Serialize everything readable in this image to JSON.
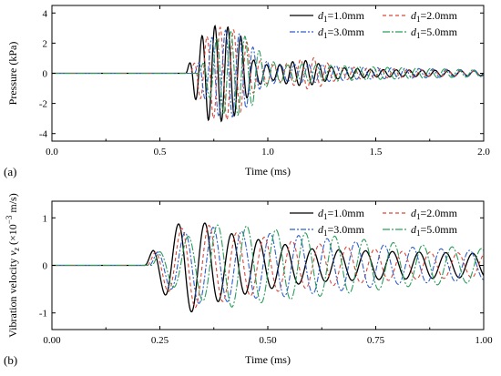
{
  "chart_data": [
    {
      "type": "line",
      "panel_label": "(a)",
      "xlabel": "Time (ms)",
      "ylabel": "Pressure (kPa)",
      "xlim": [
        0.0,
        2.0
      ],
      "ylim": [
        -4.5,
        4.5
      ],
      "xticks": [
        0.0,
        0.5,
        1.0,
        1.5,
        2.0
      ],
      "xtick_labels": [
        "0.0",
        "0.5",
        "1.0",
        "1.5",
        "2.0"
      ],
      "yticks": [
        -4,
        -2,
        0,
        2,
        4
      ],
      "ytick_labels": [
        "-4",
        "-2",
        "0",
        "2",
        "4"
      ],
      "legend_position": "top-right",
      "legend": [
        {
          "subscript": "1",
          "value": "=1.0mm"
        },
        {
          "subscript": "1",
          "value": "=2.0mm"
        },
        {
          "subscript": "1",
          "value": "=3.0mm"
        },
        {
          "subscript": "1",
          "value": "=5.0mm"
        }
      ],
      "series": [
        {
          "name": "d1=1.0mm",
          "color": "#000000",
          "dash": "",
          "onset": 0.62,
          "envelope": [
            [
              0.62,
              0
            ],
            [
              0.66,
              1.6
            ],
            [
              0.72,
              3.1
            ],
            [
              0.8,
              3.2
            ],
            [
              0.87,
              2.6
            ],
            [
              0.93,
              0.9
            ],
            [
              1.02,
              0.45
            ],
            [
              1.1,
              0.75
            ],
            [
              1.18,
              0.85
            ],
            [
              1.3,
              0.4
            ],
            [
              1.5,
              0.25
            ],
            [
              2.0,
              0.15
            ]
          ],
          "period": 0.06
        },
        {
          "name": "d1=2.0mm",
          "color": "#d9473a",
          "dash": "4,3",
          "onset": 0.64,
          "envelope": [
            [
              0.64,
              0
            ],
            [
              0.68,
              1.5
            ],
            [
              0.74,
              3.0
            ],
            [
              0.82,
              3.1
            ],
            [
              0.89,
              2.4
            ],
            [
              0.95,
              0.9
            ],
            [
              1.04,
              0.5
            ],
            [
              1.12,
              0.8
            ],
            [
              1.2,
              1.1
            ],
            [
              1.32,
              0.45
            ],
            [
              1.55,
              0.3
            ],
            [
              2.0,
              0.18
            ]
          ],
          "period": 0.062
        },
        {
          "name": "d1=3.0mm",
          "color": "#2f5fc9",
          "dash": "6,2,2,2",
          "onset": 0.66,
          "envelope": [
            [
              0.66,
              0
            ],
            [
              0.7,
              1.5
            ],
            [
              0.76,
              2.8
            ],
            [
              0.84,
              2.9
            ],
            [
              0.91,
              2.2
            ],
            [
              0.97,
              0.9
            ],
            [
              1.06,
              0.55
            ],
            [
              1.14,
              0.6
            ],
            [
              1.24,
              0.6
            ],
            [
              1.4,
              0.4
            ],
            [
              1.6,
              0.35
            ],
            [
              2.0,
              0.2
            ]
          ],
          "period": 0.064
        },
        {
          "name": "d1=5.0mm",
          "color": "#2a9d5a",
          "dash": "8,2,2,2",
          "onset": 0.68,
          "envelope": [
            [
              0.68,
              0
            ],
            [
              0.72,
              1.4
            ],
            [
              0.78,
              2.7
            ],
            [
              0.86,
              2.8
            ],
            [
              0.93,
              2.1
            ],
            [
              0.99,
              0.9
            ],
            [
              1.08,
              0.55
            ],
            [
              1.16,
              0.6
            ],
            [
              1.26,
              0.55
            ],
            [
              1.42,
              0.45
            ],
            [
              1.65,
              0.35
            ],
            [
              2.0,
              0.22
            ]
          ],
          "period": 0.066
        }
      ]
    },
    {
      "type": "line",
      "panel_label": "(b)",
      "xlabel": "Time (ms)",
      "ylabel_prefix": "Vibration velocity ",
      "ylabel_var": "v",
      "ylabel_sub": "z",
      "ylabel_mid": " (×10",
      "ylabel_exp": "−3",
      "ylabel_suffix": " m/s)",
      "xlim": [
        0.0,
        1.0
      ],
      "ylim": [
        -1.35,
        1.35
      ],
      "xticks": [
        0.0,
        0.25,
        0.5,
        0.75,
        1.0
      ],
      "xtick_labels": [
        "0.00",
        "0.25",
        "0.50",
        "0.75",
        "1.00"
      ],
      "yticks": [
        -1,
        0,
        1
      ],
      "ytick_labels": [
        "-1",
        "0",
        "1"
      ],
      "legend_position": "top-right",
      "legend": [
        {
          "subscript": "1",
          "value": "=1.0mm"
        },
        {
          "subscript": "1",
          "value": "=2.0mm"
        },
        {
          "subscript": "1",
          "value": "=3.0mm"
        },
        {
          "subscript": "1",
          "value": "=5.0mm"
        }
      ],
      "series": [
        {
          "name": "d1=1.0mm",
          "color": "#000000",
          "dash": "",
          "onset": 0.215,
          "envelope": [
            [
              0.215,
              0
            ],
            [
              0.235,
              0.35
            ],
            [
              0.27,
              0.7
            ],
            [
              0.31,
              1.0
            ],
            [
              0.34,
              0.95
            ],
            [
              0.4,
              0.7
            ],
            [
              0.5,
              0.5
            ],
            [
              0.6,
              0.35
            ],
            [
              0.75,
              0.3
            ],
            [
              1.0,
              0.25
            ]
          ],
          "period": 0.062
        },
        {
          "name": "d1=2.0mm",
          "color": "#d9473a",
          "dash": "4,3",
          "onset": 0.22,
          "envelope": [
            [
              0.22,
              0
            ],
            [
              0.24,
              0.3
            ],
            [
              0.28,
              0.65
            ],
            [
              0.32,
              0.9
            ],
            [
              0.36,
              0.85
            ],
            [
              0.42,
              0.7
            ],
            [
              0.52,
              0.55
            ],
            [
              0.62,
              0.45
            ],
            [
              0.8,
              0.3
            ],
            [
              1.0,
              0.25
            ]
          ],
          "period": 0.064
        },
        {
          "name": "d1=3.0mm",
          "color": "#2f5fc9",
          "dash": "6,2,2,2",
          "onset": 0.225,
          "envelope": [
            [
              0.225,
              0
            ],
            [
              0.245,
              0.3
            ],
            [
              0.29,
              0.6
            ],
            [
              0.33,
              0.8
            ],
            [
              0.38,
              0.8
            ],
            [
              0.45,
              0.7
            ],
            [
              0.55,
              0.65
            ],
            [
              0.65,
              0.55
            ],
            [
              0.8,
              0.4
            ],
            [
              1.0,
              0.3
            ]
          ],
          "period": 0.066
        },
        {
          "name": "d1=5.0mm",
          "color": "#2a9d5a",
          "dash": "8,2,2,2",
          "onset": 0.23,
          "envelope": [
            [
              0.23,
              0
            ],
            [
              0.25,
              0.3
            ],
            [
              0.3,
              0.55
            ],
            [
              0.35,
              0.75
            ],
            [
              0.4,
              0.9
            ],
            [
              0.47,
              0.8
            ],
            [
              0.57,
              0.7
            ],
            [
              0.67,
              0.6
            ],
            [
              0.82,
              0.45
            ],
            [
              1.0,
              0.35
            ]
          ],
          "period": 0.068
        }
      ]
    }
  ]
}
